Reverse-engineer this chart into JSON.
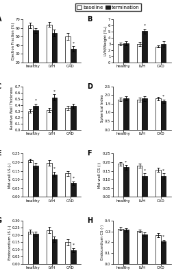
{
  "panels": [
    {
      "label": "A",
      "ylabel": "Ejection Fraction (%)",
      "ylim": [
        20,
        70
      ],
      "yticks": [
        20,
        30,
        40,
        50,
        60,
        70
      ],
      "groups": [
        "healthy",
        "LVH",
        "CAD"
      ],
      "baseline_mean": [
        63,
        64,
        50
      ],
      "baseline_err": [
        3,
        3,
        4
      ],
      "termination_mean": [
        57,
        54,
        36
      ],
      "termination_err": [
        3,
        4,
        3
      ],
      "asterisk_baseline": [
        false,
        false,
        false
      ],
      "asterisk_term": [
        false,
        false,
        true
      ]
    },
    {
      "label": "B",
      "ylabel": "LVM/Weight (‰)",
      "ylim": [
        0,
        7
      ],
      "yticks": [
        0,
        1,
        2,
        3,
        4,
        5,
        6,
        7
      ],
      "groups": [
        "healthy",
        "LVH",
        "CAD"
      ],
      "baseline_mean": [
        3.0,
        3.0,
        2.6
      ],
      "baseline_err": [
        0.2,
        0.3,
        0.2
      ],
      "termination_mean": [
        3.1,
        5.1,
        3.0
      ],
      "termination_err": [
        0.3,
        0.4,
        0.4
      ],
      "asterisk_baseline": [
        false,
        false,
        false
      ],
      "asterisk_term": [
        false,
        true,
        false
      ]
    },
    {
      "label": "C",
      "ylabel": "Relative Wall Thickness",
      "ylim": [
        0,
        0.7
      ],
      "yticks": [
        0,
        0.1,
        0.2,
        0.3,
        0.4,
        0.5,
        0.6,
        0.7
      ],
      "groups": [
        "healthy",
        "LVH",
        "CAD"
      ],
      "baseline_mean": [
        0.3,
        0.32,
        0.35
      ],
      "baseline_err": [
        0.03,
        0.03,
        0.03
      ],
      "termination_mean": [
        0.38,
        0.52,
        0.38
      ],
      "termination_err": [
        0.04,
        0.05,
        0.04
      ],
      "asterisk_baseline": [
        false,
        false,
        false
      ],
      "asterisk_term": [
        true,
        true,
        false
      ]
    },
    {
      "label": "D",
      "ylabel": "Spherical Index",
      "ylim": [
        0,
        2.5
      ],
      "yticks": [
        0,
        0.5,
        1.0,
        1.5,
        2.0,
        2.5
      ],
      "groups": [
        "healthy",
        "LVH",
        "CAD"
      ],
      "baseline_mean": [
        1.75,
        1.75,
        1.8
      ],
      "baseline_err": [
        0.1,
        0.12,
        0.1
      ],
      "termination_mean": [
        1.8,
        1.8,
        1.65
      ],
      "termination_err": [
        0.12,
        0.15,
        0.1
      ],
      "asterisk_baseline": [
        false,
        false,
        false
      ],
      "asterisk_term": [
        false,
        false,
        true
      ]
    },
    {
      "label": "E",
      "ylabel": "Mid-wall LS (-)",
      "ylim": [
        0,
        0.25
      ],
      "yticks": [
        0,
        0.05,
        0.1,
        0.15,
        0.2,
        0.25
      ],
      "groups": [
        "healthy",
        "LVH",
        "CAD"
      ],
      "baseline_mean": [
        0.21,
        0.195,
        0.135
      ],
      "baseline_err": [
        0.01,
        0.015,
        0.015
      ],
      "termination_mean": [
        0.18,
        0.13,
        0.08
      ],
      "termination_err": [
        0.015,
        0.015,
        0.01
      ],
      "asterisk_baseline": [
        false,
        false,
        false
      ],
      "asterisk_term": [
        false,
        true,
        true
      ]
    },
    {
      "label": "F",
      "ylabel": "Mid-wall CS (-)",
      "ylim": [
        0,
        0.25
      ],
      "yticks": [
        0,
        0.05,
        0.1,
        0.15,
        0.2,
        0.25
      ],
      "groups": [
        "healthy",
        "LVH",
        "CAD"
      ],
      "baseline_mean": [
        0.19,
        0.18,
        0.155
      ],
      "baseline_err": [
        0.01,
        0.012,
        0.012
      ],
      "termination_mean": [
        0.17,
        0.12,
        0.12
      ],
      "termination_err": [
        0.012,
        0.015,
        0.015
      ],
      "asterisk_baseline": [
        false,
        false,
        false
      ],
      "asterisk_term": [
        true,
        true,
        true
      ]
    },
    {
      "label": "G",
      "ylabel": "Endocardium LS (-)",
      "ylim": [
        0,
        0.3
      ],
      "yticks": [
        0,
        0.05,
        0.1,
        0.15,
        0.2,
        0.25,
        0.3
      ],
      "groups": [
        "healthy",
        "LVH",
        "CAD"
      ],
      "baseline_mean": [
        0.225,
        0.235,
        0.15
      ],
      "baseline_err": [
        0.015,
        0.02,
        0.02
      ],
      "termination_mean": [
        0.21,
        0.17,
        0.095
      ],
      "termination_err": [
        0.015,
        0.02,
        0.015
      ],
      "asterisk_baseline": [
        false,
        false,
        false
      ],
      "asterisk_term": [
        false,
        false,
        true
      ]
    },
    {
      "label": "H",
      "ylabel": "Endocardium CS (-)",
      "ylim": [
        0,
        0.4
      ],
      "yticks": [
        0,
        0.1,
        0.2,
        0.3,
        0.4
      ],
      "groups": [
        "healthy",
        "LVH",
        "CAD"
      ],
      "baseline_mean": [
        0.325,
        0.305,
        0.265
      ],
      "baseline_err": [
        0.015,
        0.015,
        0.02
      ],
      "termination_mean": [
        0.315,
        0.275,
        0.21
      ],
      "termination_err": [
        0.015,
        0.02,
        0.015
      ],
      "asterisk_baseline": [
        false,
        false,
        false
      ],
      "asterisk_term": [
        false,
        false,
        true
      ]
    }
  ],
  "bar_width": 0.28,
  "baseline_color": "#ffffff",
  "termination_color": "#1a1a1a",
  "edge_color": "#000000",
  "legend_labels": [
    "baseline",
    "termination"
  ],
  "figsize": [
    2.55,
    4.0
  ],
  "dpi": 100
}
